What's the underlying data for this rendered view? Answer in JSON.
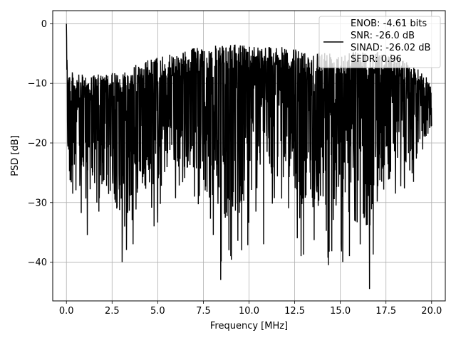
{
  "chart_data": {
    "type": "line",
    "title": "",
    "xlabel": "Frequency [MHz]",
    "ylabel": "PSD [dB]",
    "xlim": [
      -0.75,
      20.75
    ],
    "ylim": [
      -46.5,
      2.2
    ],
    "grid": true,
    "legend_placement": "top-right",
    "line_color": "#000000",
    "x_ticks": [
      0.0,
      2.5,
      5.0,
      7.5,
      10.0,
      12.5,
      15.0,
      17.5,
      20.0
    ],
    "x_tick_labels": [
      "0.0",
      "2.5",
      "5.0",
      "7.5",
      "10.0",
      "12.5",
      "15.0",
      "17.5",
      "20.0"
    ],
    "y_ticks": [
      0,
      -10,
      -20,
      -30,
      -40
    ],
    "y_tick_labels": [
      "0",
      "−10",
      "−20",
      "−30",
      "−40"
    ],
    "legend_lines": [
      "ENOB: -4.61 bits",
      "SNR: -26.0 dB",
      "SINAD: -26.02 dB",
      "SFDR: 0.96"
    ],
    "series": [
      {
        "x_start": 0.0,
        "x_end": 20.0,
        "peak": {
          "x": 0.0,
          "y": 0.0
        },
        "envelope": [
          {
            "x": 0.0,
            "upper": 0.0,
            "lower": -18
          },
          {
            "x": 0.1,
            "upper": -7.5,
            "lower": -34
          },
          {
            "x": 0.5,
            "upper": -8.5,
            "lower": -36
          },
          {
            "x": 1.0,
            "upper": -8.5,
            "lower": -37
          },
          {
            "x": 2.0,
            "upper": -8.5,
            "lower": -34
          },
          {
            "x": 3.0,
            "upper": -8.0,
            "lower": -40
          },
          {
            "x": 4.0,
            "upper": -6.5,
            "lower": -35
          },
          {
            "x": 5.0,
            "upper": -5.5,
            "lower": -34
          },
          {
            "x": 6.0,
            "upper": -5.0,
            "lower": -30
          },
          {
            "x": 7.0,
            "upper": -4.0,
            "lower": -31
          },
          {
            "x": 8.5,
            "upper": -3.5,
            "lower": -43
          },
          {
            "x": 10.0,
            "upper": -3.5,
            "lower": -38
          },
          {
            "x": 11.0,
            "upper": -3.5,
            "lower": -33
          },
          {
            "x": 12.0,
            "upper": -4.0,
            "lower": -33
          },
          {
            "x": 13.0,
            "upper": -4.5,
            "lower": -39
          },
          {
            "x": 14.5,
            "upper": -4.5,
            "lower": -40
          },
          {
            "x": 15.0,
            "upper": -4.5,
            "lower": -41
          },
          {
            "x": 16.6,
            "upper": -4.5,
            "lower": -44
          },
          {
            "x": 18.0,
            "upper": -5.0,
            "lower": -30
          },
          {
            "x": 19.0,
            "upper": -7.0,
            "lower": -29
          },
          {
            "x": 20.0,
            "upper": -9.5,
            "lower": -20
          }
        ],
        "dips": [
          {
            "x": 3.05,
            "y": -40
          },
          {
            "x": 3.65,
            "y": -37
          },
          {
            "x": 4.8,
            "y": -34
          },
          {
            "x": 8.45,
            "y": -43
          },
          {
            "x": 8.9,
            "y": -38
          },
          {
            "x": 9.0,
            "y": -39
          },
          {
            "x": 9.6,
            "y": -38
          },
          {
            "x": 10.8,
            "y": -37
          },
          {
            "x": 12.85,
            "y": -39
          },
          {
            "x": 14.35,
            "y": -40.5
          },
          {
            "x": 15.5,
            "y": -39
          },
          {
            "x": 16.6,
            "y": -44.5
          }
        ]
      }
    ]
  }
}
